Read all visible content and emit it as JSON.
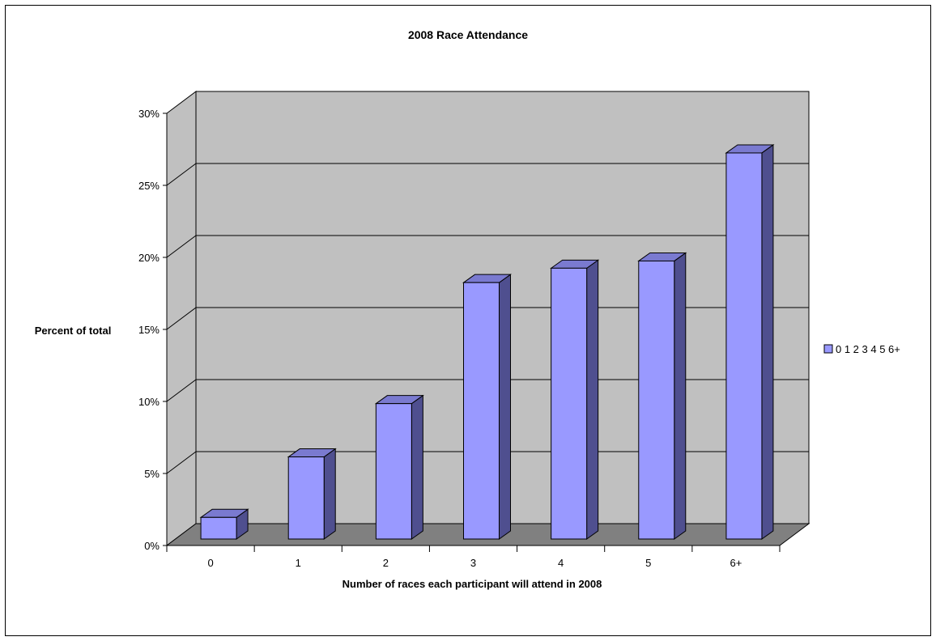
{
  "colors": {
    "plot_back": "#c0c0c0",
    "plot_side": "#c0c0c0",
    "floor": "#808080",
    "bar_front": "#9999ff",
    "bar_top": "#7a7ad0",
    "bar_side": "#4f4f8f",
    "grid": "#000000"
  },
  "legend": {
    "label": "0 1 2 3 4 5 6+"
  },
  "chart_data": {
    "type": "bar",
    "title": "2008 Race Attendance",
    "xlabel": "Number of races each participant will attend in 2008",
    "ylabel": "Percent of total",
    "categories": [
      "0",
      "1",
      "2",
      "3",
      "4",
      "5",
      "6+"
    ],
    "values": [
      1.5,
      5.7,
      9.4,
      17.8,
      18.8,
      19.3,
      26.8
    ],
    "ylim": [
      0,
      30
    ],
    "yticks": [
      "0%",
      "5%",
      "10%",
      "15%",
      "20%",
      "25%",
      "30%"
    ],
    "grid": true,
    "legend_position": "right"
  }
}
